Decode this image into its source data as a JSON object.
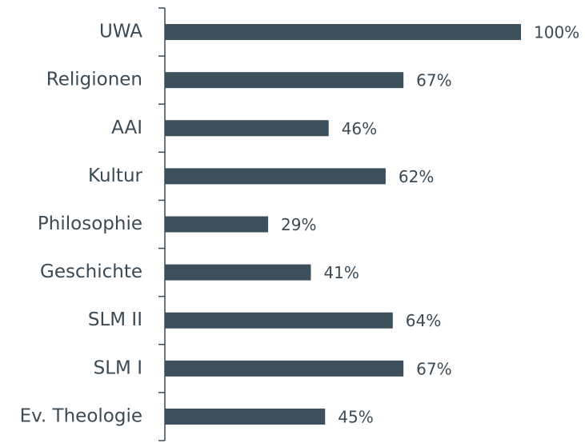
{
  "chart_data": {
    "type": "bar",
    "orientation": "horizontal",
    "categories": [
      "UWA",
      "Religionen",
      "AAI",
      "Kultur",
      "Philosophie",
      "Geschichte",
      "SLM II",
      "SLM I",
      "Ev. Theologie"
    ],
    "values": [
      100,
      67,
      46,
      62,
      29,
      41,
      64,
      67,
      45
    ],
    "value_labels": [
      "100%",
      "67%",
      "46%",
      "62%",
      "29%",
      "41%",
      "64%",
      "67%",
      "45%"
    ],
    "color": "#3d4f5a"
  }
}
